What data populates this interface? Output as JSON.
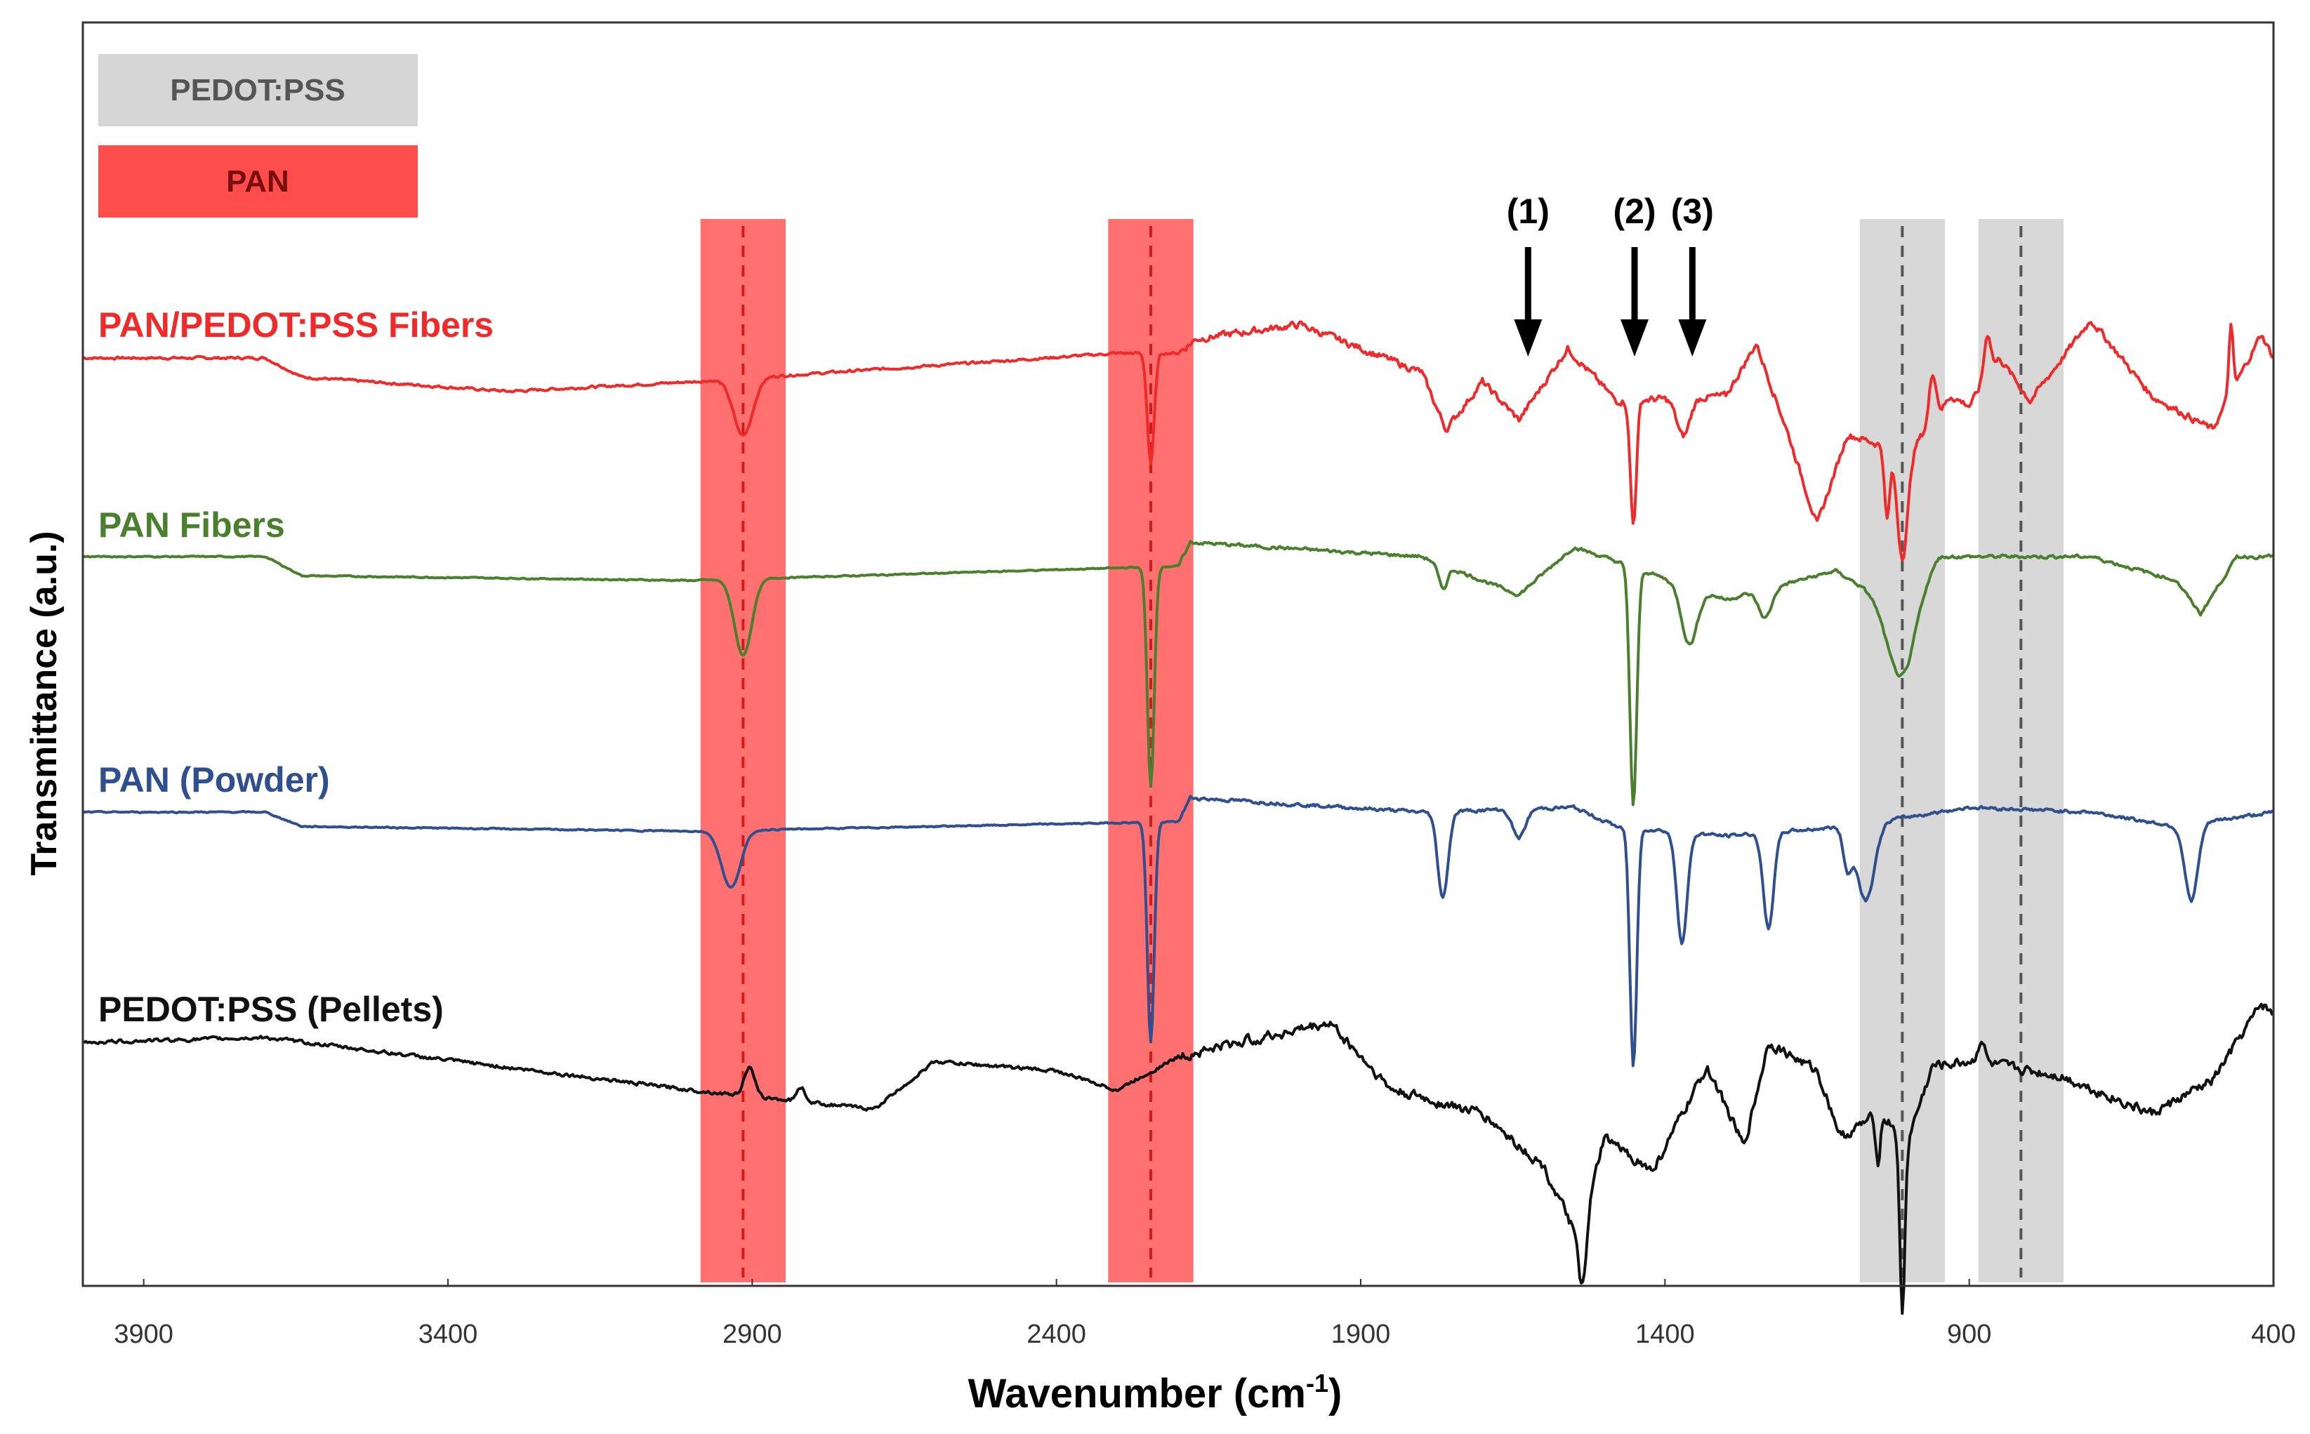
{
  "chart_data": {
    "type": "line",
    "title": "",
    "xlabel": "Wavenumber (cm",
    "xlabel_sup": "-1",
    "xlabel_close": ")",
    "ylabel": "Transmittance (a.u.)",
    "xlim": [
      4000,
      400
    ],
    "x_reversed": true,
    "xticks": [
      3900,
      3400,
      2900,
      2400,
      1900,
      1400,
      900,
      400
    ],
    "xtick_labels": [
      "3900",
      "3400",
      "2900",
      "2400",
      "1900",
      "1400",
      "900",
      "400"
    ],
    "grid": false,
    "legend": {
      "position": "top-left",
      "entries": [
        {
          "label": "PEDOT:PSS",
          "color": "#d6d6d6"
        },
        {
          "label": "PAN",
          "color": "#ff4d4d"
        }
      ]
    },
    "highlight_bands": [
      {
        "center": 2915,
        "half_width": 70,
        "group": "PAN",
        "color": "#ff4d4d"
      },
      {
        "center": 2245,
        "half_width": 70,
        "group": "PAN",
        "color": "#ff4d4d"
      },
      {
        "center": 1010,
        "half_width": 70,
        "group": "PEDOT:PSS",
        "color": "#d6d6d6"
      },
      {
        "center": 815,
        "half_width": 70,
        "group": "PEDOT:PSS",
        "color": "#d6d6d6"
      }
    ],
    "peak_annotations": [
      {
        "label": "(1)",
        "x": 1625
      },
      {
        "label": "(2)",
        "x": 1450
      },
      {
        "label": "(3)",
        "x": 1355
      }
    ],
    "series": [
      {
        "name": "PAN/PEDOT:PSS Fibers",
        "color": "#ee2a2a",
        "label_color": "#ee2a2a",
        "offset": 0,
        "noise": 0.25,
        "base": [
          [
            4000,
            0
          ],
          [
            3700,
            0
          ],
          [
            3640,
            -0.4
          ],
          [
            3300,
            -0.7
          ],
          [
            3000,
            -0.5
          ],
          [
            2300,
            0.1
          ],
          [
            2200,
            0.1
          ],
          [
            2170,
            0.4
          ],
          [
            2000,
            0.7
          ],
          [
            1800,
            -0.3
          ],
          [
            1760,
            -1.5
          ],
          [
            1700,
            -0.5
          ],
          [
            1640,
            -1.3
          ],
          [
            1560,
            0.2
          ],
          [
            1480,
            -0.9
          ],
          [
            1300,
            -0.8
          ],
          [
            1250,
            0.3
          ],
          [
            1200,
            -1.5
          ],
          [
            1150,
            -3.5
          ],
          [
            1100,
            -1.6
          ],
          [
            1000,
            -2.0
          ],
          [
            930,
            -0.8
          ],
          [
            900,
            -1.0
          ],
          [
            850,
            0
          ],
          [
            800,
            -0.9
          ],
          [
            700,
            0.8
          ],
          [
            600,
            -0.8
          ],
          [
            500,
            -1.5
          ],
          [
            420,
            0.5
          ],
          [
            400,
            0
          ]
        ],
        "peaks": [
          [
            2915,
            -1.2,
            22
          ],
          [
            2245,
            -2.3,
            8
          ],
          [
            1452,
            -2.6,
            7
          ],
          [
            1370,
            -0.8,
            15
          ],
          [
            1010,
            -2.2,
            12
          ],
          [
            1035,
            -1.5,
            6
          ],
          [
            960,
            1.0,
            8
          ],
          [
            870,
            0.9,
            8
          ],
          [
            470,
            1.4,
            5
          ]
        ]
      },
      {
        "name": "PAN Fibers",
        "color": "#4a7f2e",
        "label_color": "#4a7f2e",
        "offset": 0,
        "noise": 0.12,
        "base": [
          [
            4000,
            0
          ],
          [
            3700,
            0
          ],
          [
            3640,
            -0.4
          ],
          [
            3000,
            -0.5
          ],
          [
            2200,
            -0.2
          ],
          [
            2180,
            0.3
          ],
          [
            1800,
            0
          ],
          [
            1640,
            -0.8
          ],
          [
            1550,
            0.2
          ],
          [
            1480,
            -0.1
          ],
          [
            1300,
            -0.9
          ],
          [
            1120,
            -0.3
          ],
          [
            1000,
            -1.2
          ],
          [
            950,
            0
          ],
          [
            850,
            0
          ],
          [
            700,
            0
          ],
          [
            560,
            -0.5
          ],
          [
            520,
            -1.2
          ],
          [
            460,
            0
          ],
          [
            400,
            0
          ]
        ],
        "peaks": [
          [
            2915,
            -1.6,
            20
          ],
          [
            2245,
            -4.6,
            8
          ],
          [
            1452,
            -5.0,
            8
          ],
          [
            1360,
            -1.2,
            18
          ],
          [
            1235,
            -0.6,
            15
          ],
          [
            1015,
            -1.4,
            30
          ],
          [
            1765,
            -0.5,
            10
          ]
        ]
      },
      {
        "name": "PAN (Powder)",
        "color": "#2f4f8f",
        "label_color": "#2f4f8f",
        "offset": 0,
        "noise": 0.12,
        "base": [
          [
            4000,
            0
          ],
          [
            3700,
            0
          ],
          [
            3640,
            -0.3
          ],
          [
            3000,
            -0.4
          ],
          [
            2200,
            -0.2
          ],
          [
            2180,
            0.3
          ],
          [
            1800,
            0
          ],
          [
            1550,
            0.1
          ],
          [
            1480,
            -0.3
          ],
          [
            1300,
            -0.5
          ],
          [
            1100,
            -0.3
          ],
          [
            900,
            0.1
          ],
          [
            700,
            0
          ],
          [
            560,
            -0.3
          ],
          [
            400,
            0
          ]
        ],
        "peaks": [
          [
            2935,
            -1.2,
            22
          ],
          [
            2245,
            -4.6,
            8
          ],
          [
            1765,
            -1.8,
            12
          ],
          [
            1640,
            -0.6,
            15
          ],
          [
            1452,
            -5.0,
            8
          ],
          [
            1372,
            -2.3,
            12
          ],
          [
            1230,
            -2.0,
            12
          ],
          [
            1070,
            -1.6,
            20
          ],
          [
            1100,
            -0.8,
            10
          ],
          [
            535,
            -1.6,
            15
          ]
        ]
      },
      {
        "name": "PEDOT:PSS (Pellets)",
        "color": "#111111",
        "label_color": "#111111",
        "offset": 0,
        "noise": 0.35,
        "base": [
          [
            4000,
            0
          ],
          [
            3700,
            0.1
          ],
          [
            3000,
            -1.0
          ],
          [
            2700,
            -1.4
          ],
          [
            2600,
            -0.4
          ],
          [
            2400,
            -0.6
          ],
          [
            2300,
            -1.0
          ],
          [
            2200,
            -0.3
          ],
          [
            2100,
            0
          ],
          [
            1950,
            0.4
          ],
          [
            1850,
            -1.0
          ],
          [
            1700,
            -1.5
          ],
          [
            1600,
            -2.6
          ],
          [
            1540,
            -4.2
          ],
          [
            1500,
            -2.0
          ],
          [
            1420,
            -2.7
          ],
          [
            1330,
            -0.5
          ],
          [
            1270,
            -2.2
          ],
          [
            1230,
            0
          ],
          [
            1150,
            -0.6
          ],
          [
            1110,
            -2.0
          ],
          [
            1050,
            -1.5
          ],
          [
            1000,
            -2.0
          ],
          [
            960,
            -0.5
          ],
          [
            900,
            -0.4
          ],
          [
            750,
            -0.7
          ],
          [
            600,
            -1.5
          ],
          [
            500,
            -0.8
          ],
          [
            420,
            0.8
          ],
          [
            400,
            0.6
          ]
        ],
        "peaks": [
          [
            2905,
            0.6,
            12
          ],
          [
            2820,
            0.3,
            10
          ],
          [
            1535,
            -1.2,
            8
          ],
          [
            1010,
            -3.8,
            6
          ],
          [
            1050,
            -1.0,
            5
          ],
          [
            880,
            0.5,
            8
          ]
        ]
      }
    ]
  }
}
